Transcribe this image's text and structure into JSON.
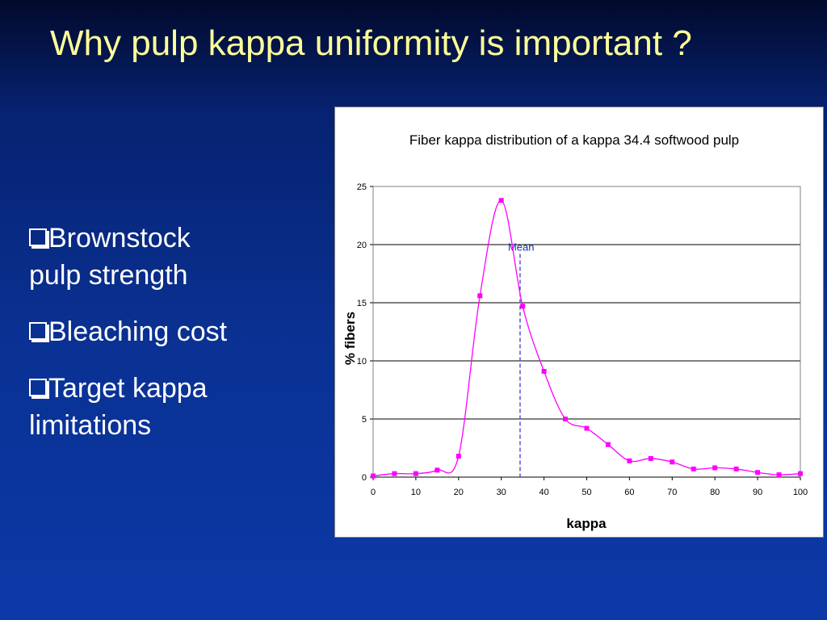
{
  "slide": {
    "title": "Why pulp kappa uniformity is important ?",
    "bullets": [
      {
        "lines": [
          "Brownstock",
          "pulp strength"
        ]
      },
      {
        "lines": [
          "Bleaching cost"
        ]
      },
      {
        "lines": [
          "Target kappa",
          "limitations"
        ]
      }
    ]
  },
  "chart_data": {
    "type": "line",
    "title": "Fiber kappa distribution of a  kappa 34.4 softwood pulp",
    "xlabel": "kappa",
    "ylabel": "% fibers",
    "xlim": [
      0,
      100
    ],
    "ylim": [
      0,
      25
    ],
    "x_ticks": [
      0,
      10,
      20,
      30,
      40,
      50,
      60,
      70,
      80,
      90,
      100
    ],
    "y_ticks": [
      0,
      5,
      10,
      15,
      20,
      25
    ],
    "grid": "horizontal",
    "legend": "none",
    "series": [
      {
        "color": "#ff00ff",
        "x": [
          0,
          5,
          10,
          15,
          20,
          25,
          30,
          35,
          40,
          45,
          50,
          55,
          60,
          65,
          70,
          75,
          80,
          85,
          90,
          95,
          100
        ],
        "y": [
          0.1,
          0.3,
          0.3,
          0.6,
          1.8,
          15.6,
          23.8,
          14.7,
          9.1,
          5.0,
          4.2,
          2.8,
          1.4,
          1.6,
          1.3,
          0.7,
          0.8,
          0.7,
          0.4,
          0.2,
          0.3
        ]
      }
    ],
    "annotations": [
      {
        "text": "Mean",
        "x": 34.4,
        "color": "#1a2fa8"
      }
    ]
  }
}
